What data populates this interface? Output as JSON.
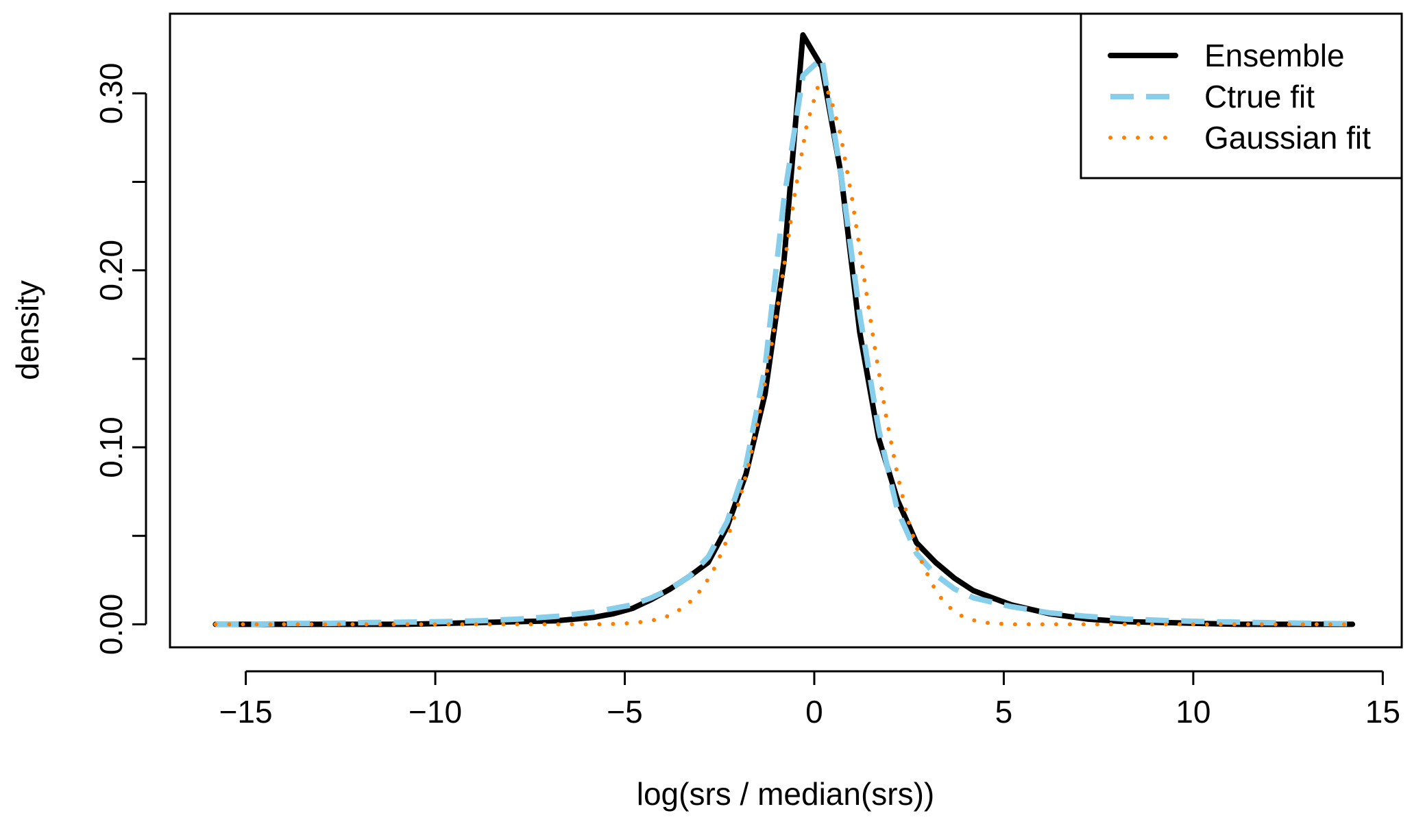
{
  "chart_data": {
    "type": "line",
    "title": "",
    "xlabel": "log(srs / median(srs))",
    "ylabel": "density",
    "xlim": [
      -17,
      15.5
    ],
    "ylim": [
      -0.013,
      0.345
    ],
    "x_ticks": [
      -15,
      -10,
      -5,
      0,
      5,
      10,
      15
    ],
    "x_tick_labels": [
      "−15",
      "−10",
      "−5",
      "0",
      "5",
      "10",
      "15"
    ],
    "y_ticks": [
      0.0,
      0.05,
      0.1,
      0.15,
      0.2,
      0.25,
      0.3
    ],
    "y_tick_labels": [
      "0.00",
      "",
      "0.10",
      "",
      "0.20",
      "",
      "0.30"
    ],
    "grid": false,
    "legend_position": "top-right",
    "series": [
      {
        "name": "Ensemble",
        "color": "#000000",
        "style": "solid",
        "x": [
          -15.8,
          -14.8,
          -13.8,
          -12.8,
          -11.8,
          -10.8,
          -9.8,
          -8.8,
          -7.8,
          -6.8,
          -5.8,
          -5.3,
          -4.8,
          -4.3,
          -3.8,
          -3.3,
          -2.8,
          -2.3,
          -1.8,
          -1.3,
          -0.8,
          -0.3,
          0.2,
          0.7,
          1.2,
          1.7,
          2.2,
          2.7,
          3.2,
          3.7,
          4.2,
          4.7,
          5.2,
          6.2,
          7.2,
          8.2,
          9.2,
          10.2,
          11.2,
          12.2,
          13.2,
          14.2
        ],
        "y": [
          0.0,
          0.0,
          0.0,
          0.0,
          0.0,
          0.0,
          0.0005,
          0.001,
          0.0015,
          0.002,
          0.004,
          0.006,
          0.009,
          0.014,
          0.02,
          0.027,
          0.035,
          0.055,
          0.085,
          0.13,
          0.205,
          0.333,
          0.315,
          0.255,
          0.165,
          0.105,
          0.07,
          0.046,
          0.035,
          0.026,
          0.019,
          0.015,
          0.011,
          0.006,
          0.003,
          0.0015,
          0.001,
          0.0005,
          0.0,
          0.0,
          0.0,
          0.0
        ]
      },
      {
        "name": "Ctrue fit",
        "color": "#87CEEB",
        "style": "dashed",
        "x": [
          -15.8,
          -14.8,
          -13.8,
          -12.8,
          -11.8,
          -10.8,
          -9.8,
          -8.8,
          -7.8,
          -6.8,
          -5.8,
          -4.8,
          -4.3,
          -3.8,
          -3.3,
          -2.8,
          -2.3,
          -1.8,
          -1.3,
          -0.8,
          -0.3,
          0.2,
          0.7,
          1.2,
          1.7,
          2.2,
          2.7,
          3.2,
          3.7,
          4.2,
          5.2,
          6.2,
          7.2,
          8.2,
          9.2,
          10.2,
          11.2,
          12.2,
          13.2,
          14.2
        ],
        "y": [
          0.0,
          0.0,
          0.0005,
          0.0005,
          0.001,
          0.0012,
          0.0015,
          0.002,
          0.003,
          0.0045,
          0.007,
          0.011,
          0.015,
          0.02,
          0.027,
          0.038,
          0.058,
          0.09,
          0.145,
          0.24,
          0.31,
          0.32,
          0.255,
          0.175,
          0.11,
          0.064,
          0.04,
          0.028,
          0.02,
          0.015,
          0.01,
          0.0065,
          0.0045,
          0.003,
          0.0022,
          0.0016,
          0.0012,
          0.0008,
          0.0005,
          0.0003
        ]
      },
      {
        "name": "Gaussian fit",
        "color": "#FF7F00",
        "style": "dotted",
        "x": [
          -15.8,
          -10.8,
          -8.8,
          -7.8,
          -6.8,
          -5.8,
          -5.3,
          -4.8,
          -4.3,
          -3.8,
          -3.5,
          -3.2,
          -2.9,
          -2.6,
          -2.3,
          -2.0,
          -1.7,
          -1.4,
          -1.1,
          -0.8,
          -0.5,
          -0.2,
          0.1,
          0.4,
          0.7,
          1.0,
          1.3,
          1.6,
          1.9,
          2.2,
          2.5,
          2.8,
          3.1,
          3.4,
          3.7,
          4.0,
          4.4,
          4.8,
          5.3,
          6.3,
          8.3,
          14.2
        ],
        "y": [
          0.0,
          0.0,
          0.0,
          0.0,
          0.0,
          0.0,
          0.0002,
          0.0007,
          0.002,
          0.005,
          0.009,
          0.014,
          0.022,
          0.033,
          0.048,
          0.068,
          0.093,
          0.124,
          0.161,
          0.202,
          0.245,
          0.282,
          0.304,
          0.3,
          0.276,
          0.24,
          0.198,
          0.156,
          0.117,
          0.084,
          0.057,
          0.037,
          0.023,
          0.013,
          0.007,
          0.0035,
          0.0012,
          0.0004,
          0.0,
          0.0,
          0.0,
          0.0
        ]
      }
    ]
  }
}
